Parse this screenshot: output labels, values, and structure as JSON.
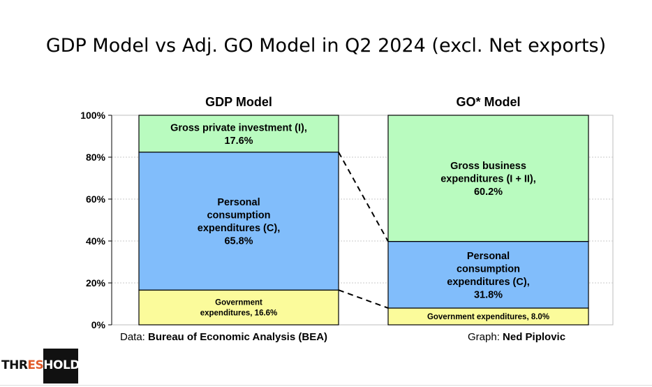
{
  "title": "GDP Model vs Adj. GO Model in Q2 2024 (excl. Net exports)",
  "footer": {
    "data_prefix": "Data: ",
    "data_source": "Bureau of Economic Analysis (BEA)",
    "graph_prefix": "Graph: ",
    "graph_author": "Ned Piplovic"
  },
  "logo": {
    "part1": "THR",
    "part2": "ES",
    "part3": "HOLD"
  },
  "colors": {
    "green": "#b9fbbf",
    "blue": "#81bdfb",
    "yellow": "#fbfb9b",
    "grid": "#c8c8c8"
  },
  "chart_data": {
    "type": "bar",
    "stacked": true,
    "ylim": [
      0,
      100
    ],
    "yticks": [
      0,
      20,
      40,
      60,
      80,
      100
    ],
    "ytick_labels": [
      "0%",
      "20%",
      "40%",
      "60%",
      "80%",
      "100%"
    ],
    "categories": [
      "GDP Model",
      "GO* Model"
    ],
    "bars": [
      {
        "name": "GDP Model",
        "segments": [
          {
            "name": "Government expenditures",
            "value": 16.6,
            "color": "yellow",
            "label_lines": [
              "Government",
              "expenditures, 16.6%"
            ],
            "small": true
          },
          {
            "name": "Personal consumption expenditures (C)",
            "value": 65.8,
            "color": "blue",
            "label_lines": [
              "Personal",
              "consumption",
              "expenditures (C),",
              "65.8%"
            ]
          },
          {
            "name": "Gross private investment (I)",
            "value": 17.6,
            "color": "green",
            "label_lines": [
              "Gross private investment (I),",
              "17.6%"
            ]
          }
        ]
      },
      {
        "name": "GO* Model",
        "segments": [
          {
            "name": "Government expenditures",
            "value": 8.0,
            "color": "yellow",
            "label_lines": [
              "Government expenditures, 8.0%"
            ],
            "small": true
          },
          {
            "name": "Personal consumption expenditures (C)",
            "value": 31.8,
            "color": "blue",
            "label_lines": [
              "Personal",
              "consumption",
              "expenditures (C),",
              "31.8%"
            ]
          },
          {
            "name": "Gross business expenditures (I + II)",
            "value": 60.2,
            "color": "green",
            "label_lines": [
              "Gross business",
              "expenditures (I + II),",
              "60.2%"
            ]
          }
        ]
      }
    ],
    "connectors": [
      {
        "from_bar": 0,
        "from_value": 82.4,
        "to_bar": 1,
        "to_value": 39.8
      },
      {
        "from_bar": 0,
        "from_value": 16.6,
        "to_bar": 1,
        "to_value": 8.0
      }
    ]
  }
}
